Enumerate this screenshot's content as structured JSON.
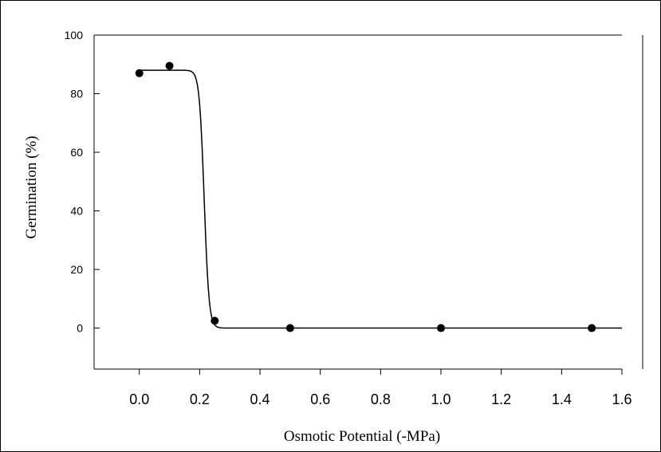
{
  "chart_data": {
    "type": "scatter",
    "xlabel": "Osmotic Potential (-MPa)",
    "ylabel": "Germination (%)",
    "xlim": [
      -0.15,
      1.6
    ],
    "ylim": [
      -14,
      100
    ],
    "x_ticks": [
      0.0,
      0.2,
      0.4,
      0.6,
      0.8,
      1.0,
      1.2,
      1.4,
      1.6
    ],
    "x_tick_labels": [
      "0.0",
      "0.2",
      "0.4",
      "0.6",
      "0.8",
      "1.0",
      "1.2",
      "1.4",
      "1.6"
    ],
    "y_ticks": [
      0,
      20,
      40,
      60,
      80,
      100
    ],
    "y_tick_labels": [
      "0",
      "20",
      "40",
      "60",
      "80",
      "100"
    ],
    "points": [
      {
        "x": 0.0,
        "y": 87
      },
      {
        "x": 0.1,
        "y": 89.5
      },
      {
        "x": 0.25,
        "y": 2.5
      },
      {
        "x": 0.5,
        "y": 0
      },
      {
        "x": 1.0,
        "y": 0
      },
      {
        "x": 1.5,
        "y": 0
      }
    ],
    "fit_curve": {
      "model": "sigmoid",
      "max": 88,
      "x50": 0.215,
      "slope": 0.008,
      "x_range": [
        0.0,
        1.6
      ]
    },
    "grid": false,
    "legend": "none"
  }
}
